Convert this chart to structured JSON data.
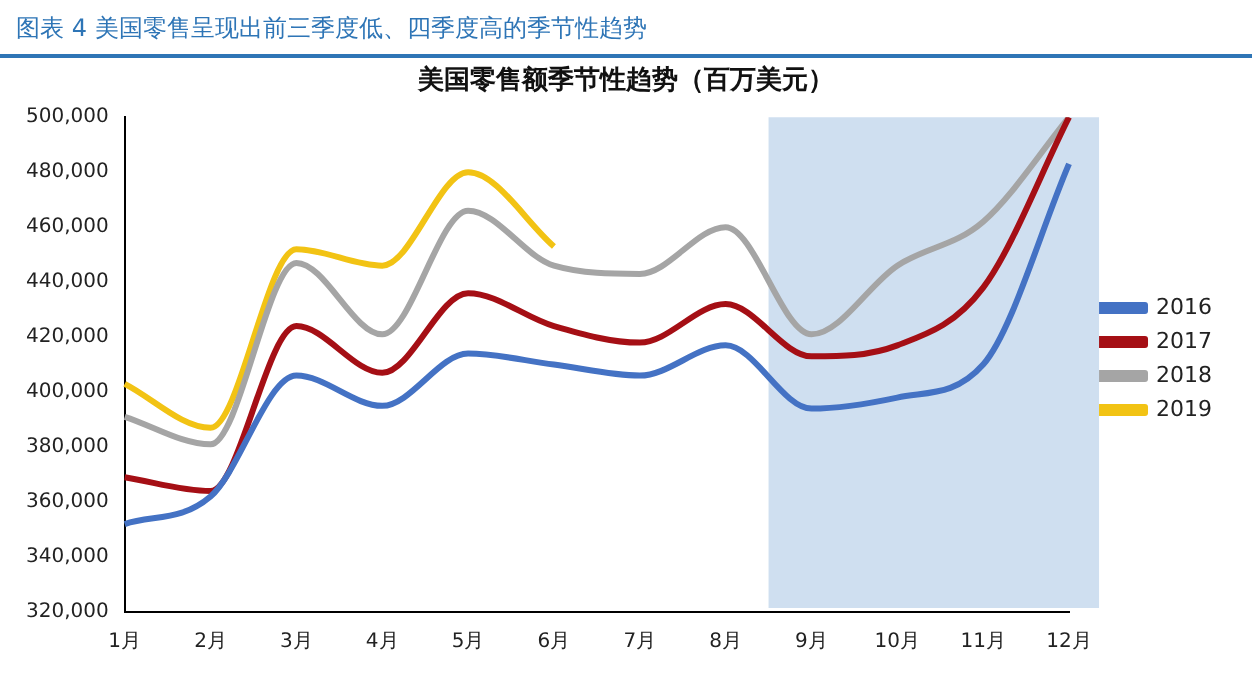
{
  "chart_data": {
    "type": "line",
    "title": "美国零售额季节性趋势（百万美元）",
    "annotations": [
      "图表 4 美国零售呈现出前三季度低、四季度高的季节性趋势"
    ],
    "categories": [
      "1月",
      "2月",
      "3月",
      "4月",
      "5月",
      "6月",
      "7月",
      "8月",
      "9月",
      "10月",
      "11月",
      "12月"
    ],
    "series": [
      {
        "name": "2016",
        "color": "#4472c4",
        "values": [
          352000,
          362000,
          406000,
          395000,
          414000,
          410000,
          406000,
          417000,
          394000,
          398000,
          410000,
          483000
        ]
      },
      {
        "name": "2017",
        "color": "#a50f15",
        "values": [
          369000,
          364000,
          424000,
          407000,
          436000,
          424000,
          418000,
          432000,
          413000,
          417000,
          438000,
          500000
        ]
      },
      {
        "name": "2018",
        "color": "#a5a5a5",
        "values": [
          391000,
          381000,
          447000,
          421000,
          466000,
          446000,
          443000,
          460000,
          421000,
          446000,
          462000,
          500000
        ]
      },
      {
        "name": "2019",
        "color": "#f2c314",
        "values": [
          403000,
          387000,
          452000,
          446000,
          480000,
          453000,
          null,
          null,
          null,
          null,
          null,
          null
        ]
      }
    ],
    "ylim": [
      320000,
      500000
    ],
    "yticks": [
      {
        "value": 320000,
        "label": "320,000"
      },
      {
        "value": 340000,
        "label": "340,000"
      },
      {
        "value": 360000,
        "label": "360,000"
      },
      {
        "value": 380000,
        "label": "380,000"
      },
      {
        "value": 400000,
        "label": "400,000"
      },
      {
        "value": 420000,
        "label": "420,000"
      },
      {
        "value": 440000,
        "label": "440,000"
      },
      {
        "value": 460000,
        "label": "460,000"
      },
      {
        "value": 480000,
        "label": "480,000"
      },
      {
        "value": 500000,
        "label": "500,000"
      }
    ],
    "bands": [
      {
        "axis": "x",
        "from": "9月",
        "to": "12月",
        "color": "#cfdff0"
      }
    ],
    "grid": false,
    "legend": "right",
    "marker": "none",
    "line_style": "solid"
  }
}
